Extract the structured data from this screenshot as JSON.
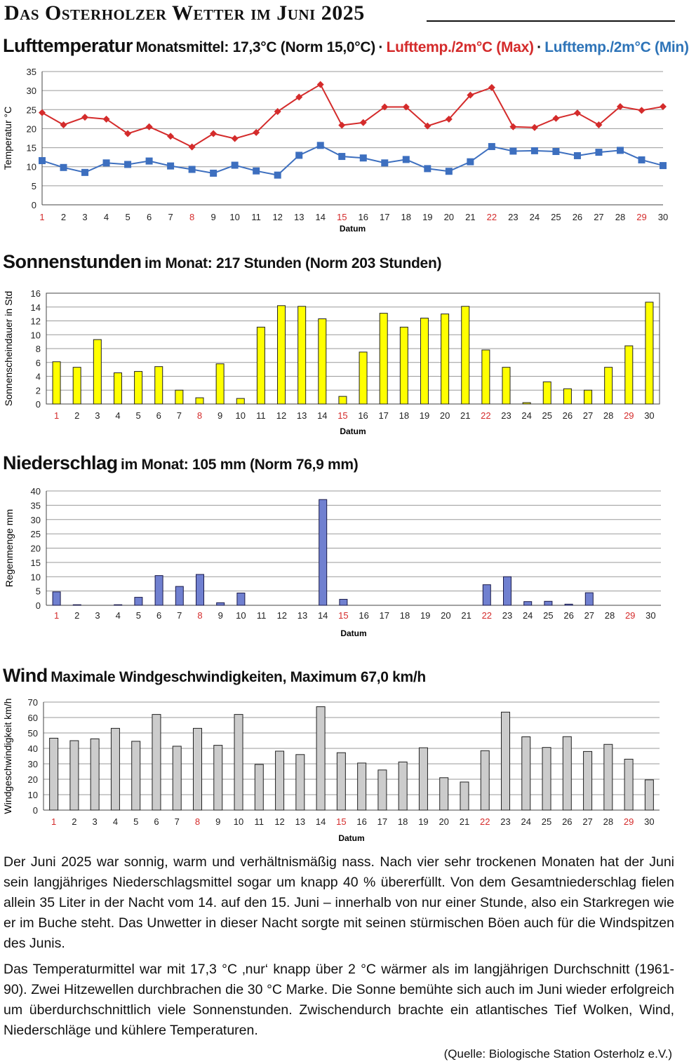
{
  "header": {
    "title": "Das Osterholzer Wetter im Juni 2025"
  },
  "temperature": {
    "title": "Lufttemperatur",
    "subtitle": "Monatsmittel: 17,3°C (Norm 15,0°C)",
    "sep": "·",
    "legend_max": "Lufttemp./2m°C (Max)",
    "legend_min": "Lufttemp./2m°C (Min)"
  },
  "sun": {
    "title": "Sonnenstunden",
    "subtitle": "im Monat: 217 Stunden (Norm 203 Stunden)"
  },
  "rain": {
    "title": "Niederschlag",
    "subtitle": "im Monat: 105 mm (Norm 76,9 mm)"
  },
  "wind": {
    "title": "Wind",
    "subtitle": "Maximale Windgeschwindigkeiten, Maximum 67,0 km/h"
  },
  "text": {
    "p1": "Der Juni 2025 war sonnig, warm und verhältnismäßig nass. Nach vier sehr trockenen Monaten hat der Juni sein langjähriges Niederschlagsmittel sogar um knapp 40 % übererfüllt. Von dem Gesamtniederschlag fielen allein 35 Liter in der Nacht vom 14. auf den 15. Juni – innerhalb von nur einer Stunde, also ein Starkregen wie er im Buche steht. Das Unwetter in dieser Nacht sorgte mit seinen stürmischen Böen auch für die Windspitzen des Junis.",
    "p2": "Das Temperaturmittel war mit 17,3 °C ‚nur‘ knapp über 2 °C wärmer als im langjährigen Durchschnitt (1961-90). Zwei Hitzewellen durchbrachen die 30 °C Marke. Die Sonne bemühte sich auch im Juni wieder erfolgreich um überdurchschnittlich viele Sonnenstunden. Zwischendurch brachte ein atlantisches Tief Wolken, Wind, Niederschläge und kühlere Temperaturen.",
    "source": "(Quelle: Biologische Station Osterholz e.V.)"
  },
  "colors": {
    "max_line": "#d42b2b",
    "min_line": "#3d6fbf",
    "sun_bar": "#ffff00",
    "rain_bar": "#7080d0",
    "wind_bar": "#cccccc",
    "weekend_label": "#d42b2b"
  },
  "chart_data": [
    {
      "id": "temperature",
      "type": "line",
      "title": "Lufttemperatur",
      "xlabel": "Datum",
      "ylabel": "Temperatur °C",
      "ylim": [
        0,
        35
      ],
      "yticks": [
        0,
        5,
        10,
        15,
        20,
        25,
        30,
        35
      ],
      "grid": true,
      "x": [
        1,
        2,
        3,
        4,
        5,
        6,
        7,
        8,
        9,
        10,
        11,
        12,
        13,
        14,
        15,
        16,
        17,
        18,
        19,
        20,
        21,
        22,
        23,
        24,
        25,
        26,
        27,
        28,
        29,
        30
      ],
      "highlight_x": [
        1,
        8,
        15,
        22,
        29
      ],
      "series": [
        {
          "name": "Lufttemp./2m°C (Max)",
          "values": [
            24.2,
            21.0,
            23.0,
            22.5,
            18.7,
            20.5,
            18.0,
            15.2,
            18.7,
            17.4,
            19.0,
            24.5,
            28.3,
            31.6,
            20.9,
            21.6,
            25.7,
            25.7,
            20.7,
            22.5,
            28.8,
            30.8,
            20.5,
            20.3,
            22.7,
            24.1,
            21.0,
            25.8,
            24.8,
            25.8
          ]
        },
        {
          "name": "Lufttemp./2m°C (Min)",
          "values": [
            11.6,
            9.8,
            8.5,
            11.0,
            10.6,
            11.5,
            10.2,
            9.3,
            8.3,
            10.4,
            8.9,
            7.8,
            13.0,
            15.6,
            12.7,
            12.3,
            11.0,
            11.9,
            9.5,
            8.8,
            11.3,
            15.3,
            14.1,
            14.2,
            14.0,
            12.9,
            13.8,
            14.3,
            11.8,
            10.3
          ]
        }
      ]
    },
    {
      "id": "sun",
      "type": "bar",
      "title": "Sonnenstunden",
      "xlabel": "Datum",
      "ylabel": "Sonnenscheindauer in Std",
      "ylim": [
        0,
        16
      ],
      "yticks": [
        0,
        2,
        4,
        6,
        8,
        10,
        12,
        14,
        16
      ],
      "grid": true,
      "categories": [
        "1",
        "2",
        "3",
        "4",
        "5",
        "6",
        "7",
        "8",
        "9",
        "10",
        "11",
        "12",
        "13",
        "14",
        "15",
        "16",
        "17",
        "18",
        "19",
        "20",
        "21",
        "22",
        "23",
        "24",
        "25",
        "26",
        "27",
        "28",
        "29",
        "30"
      ],
      "highlight": [
        "1",
        "8",
        "15",
        "22",
        "29"
      ],
      "values": [
        6.1,
        5.3,
        9.3,
        4.5,
        4.7,
        5.4,
        2.0,
        0.9,
        5.8,
        0.8,
        11.1,
        14.2,
        14.1,
        12.3,
        1.1,
        7.5,
        13.1,
        11.1,
        12.4,
        13.0,
        14.1,
        7.8,
        5.3,
        0.2,
        3.2,
        2.2,
        2.0,
        5.3,
        8.4,
        14.7
      ]
    },
    {
      "id": "rain",
      "type": "bar",
      "title": "Niederschlag",
      "xlabel": "Datum",
      "ylabel": "Regenmenge mm",
      "ylim": [
        0,
        40
      ],
      "yticks": [
        0,
        5,
        10,
        15,
        20,
        25,
        30,
        35,
        40
      ],
      "grid": true,
      "categories": [
        "1",
        "2",
        "3",
        "4",
        "5",
        "6",
        "7",
        "8",
        "9",
        "10",
        "11",
        "12",
        "13",
        "14",
        "15",
        "16",
        "17",
        "18",
        "19",
        "20",
        "21",
        "22",
        "23",
        "24",
        "25",
        "26",
        "27",
        "28",
        "29",
        "30"
      ],
      "highlight": [
        "1",
        "8",
        "15",
        "22",
        "29"
      ],
      "values": [
        4.7,
        0.2,
        0,
        0.2,
        2.8,
        10.4,
        6.6,
        10.8,
        0.9,
        4.3,
        0,
        0,
        0,
        37.0,
        2.1,
        0,
        0,
        0,
        0,
        0,
        0,
        7.2,
        10.0,
        1.3,
        1.4,
        0.4,
        4.4,
        0,
        0,
        0
      ]
    },
    {
      "id": "wind",
      "type": "bar",
      "title": "Wind",
      "xlabel": "Datum",
      "ylabel": "Windgeschwindigkeit km/h",
      "ylim": [
        0,
        70
      ],
      "yticks": [
        0,
        10,
        20,
        30,
        40,
        50,
        60,
        70
      ],
      "grid": true,
      "categories": [
        "1",
        "2",
        "3",
        "4",
        "5",
        "6",
        "7",
        "8",
        "9",
        "10",
        "11",
        "12",
        "13",
        "14",
        "15",
        "16",
        "17",
        "18",
        "19",
        "20",
        "21",
        "22",
        "23",
        "24",
        "25",
        "26",
        "27",
        "28",
        "29",
        "30"
      ],
      "highlight": [
        "1",
        "8",
        "15",
        "22",
        "29"
      ],
      "values": [
        46.6,
        45.0,
        46.2,
        53.0,
        44.6,
        62.0,
        41.4,
        53.0,
        42.0,
        62.0,
        29.6,
        38.2,
        36.0,
        67.0,
        37.2,
        30.5,
        26.0,
        31.2,
        40.4,
        21.0,
        18.2,
        38.5,
        63.5,
        47.5,
        40.6,
        47.6,
        38.0,
        42.6,
        33.0,
        19.6
      ]
    }
  ]
}
